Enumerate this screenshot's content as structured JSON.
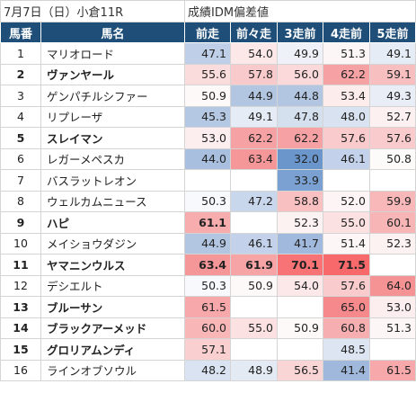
{
  "title": {
    "date_race": "7月7日（日）小倉11R",
    "table_title": "成績IDM偏差値"
  },
  "headers": [
    "馬番",
    "馬名",
    "前走",
    "前々走",
    "3走前",
    "4走前",
    "5走前"
  ],
  "colors": {
    "header_bg": "#1f4e79",
    "high_dark": "#f8696b",
    "low_dark": "#5a8ac6"
  },
  "rows": [
    {
      "num": "1",
      "name": "マリオロード",
      "bold": false,
      "vals": [
        "47.1",
        "54.0",
        "49.9",
        "51.3",
        "49.1"
      ],
      "bg": [
        "#bfcfe8",
        "#fce8e8",
        "#eef2f8",
        "#fdf6f6",
        "#e6ecf5"
      ],
      "bv": [
        false,
        false,
        false,
        false,
        false
      ]
    },
    {
      "num": "2",
      "name": "ヴァンヤール",
      "bold": true,
      "vals": [
        "55.6",
        "57.8",
        "56.0",
        "62.2",
        "59.1"
      ],
      "bg": [
        "#fbdcdd",
        "#f9cacb",
        "#fbd9da",
        "#f6a2a4",
        "#f8bfc0"
      ],
      "bv": [
        false,
        false,
        false,
        false,
        false
      ]
    },
    {
      "num": "3",
      "name": "ゲンパチルシファー",
      "bold": false,
      "vals": [
        "50.9",
        "44.9",
        "44.8",
        "53.4",
        "49.3"
      ],
      "bg": [
        "#fdf9f9",
        "#b2c6e2",
        "#b2c6e2",
        "#fcecec",
        "#e8edf6"
      ],
      "bv": [
        false,
        false,
        false,
        false,
        false
      ]
    },
    {
      "num": "4",
      "name": "リプレーザ",
      "bold": false,
      "vals": [
        "45.3",
        "49.1",
        "47.8",
        "48.0",
        "52.7"
      ],
      "bg": [
        "#b5c8e3",
        "#e6ecf5",
        "#d5e0ef",
        "#d8e2f0",
        "#fcf0f0"
      ],
      "bv": [
        false,
        false,
        false,
        false,
        false
      ]
    },
    {
      "num": "5",
      "name": "スレイマン",
      "bold": true,
      "vals": [
        "53.0",
        "62.2",
        "62.2",
        "57.6",
        "57.6"
      ],
      "bg": [
        "#fceeee",
        "#f6a2a4",
        "#f6a2a4",
        "#f9cbcc",
        "#f9cbcc"
      ],
      "bv": [
        false,
        false,
        false,
        false,
        false
      ]
    },
    {
      "num": "6",
      "name": "レガーメペスカ",
      "bold": false,
      "vals": [
        "44.0",
        "63.4",
        "32.0",
        "46.1",
        "50.8"
      ],
      "bg": [
        "#a8bfdf",
        "#f59799",
        "#6a96cc",
        "#c3d2ea",
        "#fdfafa"
      ],
      "bv": [
        false,
        false,
        false,
        false,
        false
      ]
    },
    {
      "num": "7",
      "name": "バスラットレオン",
      "bold": false,
      "vals": [
        "",
        "",
        "33.9",
        "",
        ""
      ],
      "bg": [
        "#ffffff",
        "#ffffff",
        "#7aa1d2",
        "#ffffff",
        "#ffffff"
      ],
      "bv": [
        false,
        false,
        false,
        false,
        false
      ]
    },
    {
      "num": "8",
      "name": "ウェルカムニュース",
      "bold": false,
      "vals": [
        "50.3",
        "47.2",
        "58.8",
        "52.0",
        "59.9"
      ],
      "bg": [
        "#f7f9fc",
        "#c9d7ec",
        "#f9c0c1",
        "#fdf5f5",
        "#f8b7b8"
      ],
      "bv": [
        false,
        false,
        false,
        false,
        false
      ]
    },
    {
      "num": "9",
      "name": "ハピ",
      "bold": true,
      "vals": [
        "61.1",
        "",
        "52.3",
        "55.0",
        "60.1"
      ],
      "bg": [
        "#f7acae",
        "#ffffff",
        "#fcf2f2",
        "#fbe1e1",
        "#f8b5b6"
      ],
      "bv": [
        true,
        false,
        false,
        false,
        false
      ]
    },
    {
      "num": "10",
      "name": "メイショウダジン",
      "bold": false,
      "vals": [
        "44.9",
        "46.1",
        "41.7",
        "51.4",
        "52.3"
      ],
      "bg": [
        "#b2c6e2",
        "#c3d2ea",
        "#a1b9dc",
        "#fdf6f6",
        "#fcf2f2"
      ],
      "bv": [
        false,
        false,
        false,
        false,
        false
      ]
    },
    {
      "num": "11",
      "name": "ヤマニンウルス",
      "bold": true,
      "vals": [
        "63.4",
        "61.9",
        "70.1",
        "71.5",
        ""
      ],
      "bg": [
        "#f59799",
        "#f6a4a6",
        "#f87375",
        "#f8696b",
        "#ffffff"
      ],
      "bv": [
        true,
        true,
        true,
        true,
        false
      ]
    },
    {
      "num": "12",
      "name": "デシエルト",
      "bold": false,
      "vals": [
        "50.3",
        "50.9",
        "54.0",
        "57.6",
        "64.0"
      ],
      "bg": [
        "#f7f9fc",
        "#fdf9f9",
        "#fce8e8",
        "#f9cbcc",
        "#f59294"
      ],
      "bv": [
        false,
        false,
        false,
        false,
        false
      ]
    },
    {
      "num": "13",
      "name": "ブルーサン",
      "bold": true,
      "vals": [
        "61.5",
        "",
        "",
        "65.0",
        "53.0"
      ],
      "bg": [
        "#f6a8aa",
        "#ffffff",
        "#ffffff",
        "#f5898b",
        "#fceeee"
      ],
      "bv": [
        false,
        false,
        false,
        false,
        false
      ]
    },
    {
      "num": "14",
      "name": "ブラックアーメッド",
      "bold": true,
      "vals": [
        "60.0",
        "55.0",
        "50.9",
        "60.8",
        "51.3"
      ],
      "bg": [
        "#f8b6b7",
        "#fbe1e1",
        "#fdf9f9",
        "#f7aeb0",
        "#fdf6f6"
      ],
      "bv": [
        false,
        false,
        false,
        false,
        false
      ]
    },
    {
      "num": "15",
      "name": "グロリアムンディ",
      "bold": true,
      "vals": [
        "57.1",
        "",
        "",
        "48.5",
        ""
      ],
      "bg": [
        "#f9cfd0",
        "#ffffff",
        "#ffffff",
        "#dde5f2",
        "#ffffff"
      ],
      "bv": [
        false,
        false,
        false,
        false,
        false
      ]
    },
    {
      "num": "16",
      "name": "ラインオブソウル",
      "bold": false,
      "vals": [
        "48.2",
        "48.9",
        "56.5",
        "41.4",
        "61.5"
      ],
      "bg": [
        "#dae3f1",
        "#e3eaf4",
        "#fad5d6",
        "#a0b8db",
        "#f6a8aa"
      ],
      "bv": [
        false,
        false,
        false,
        false,
        false
      ]
    }
  ]
}
